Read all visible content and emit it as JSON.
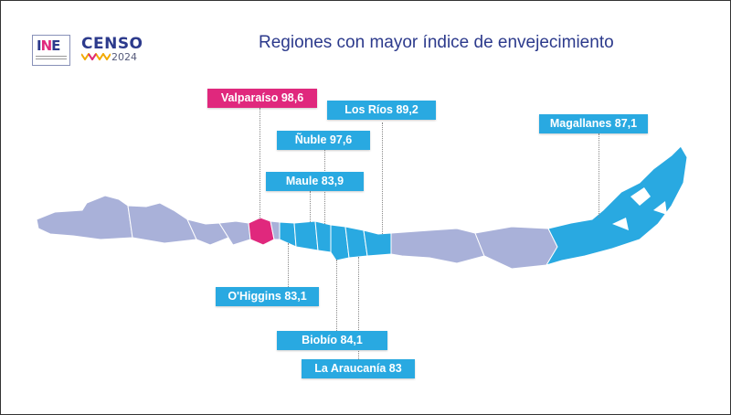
{
  "header": {
    "logo_ine": "INE — Instituto Nacional de Estadísticas · Chile",
    "logo_censo": "CENSO",
    "logo_censo_year": "2024",
    "title": "Regiones con mayor índice de envejecimiento"
  },
  "colors": {
    "highlight": "#e0287d",
    "top_regions": "#29a9e1",
    "other_regions": "#a9b1d9",
    "title": "#2c3a8c"
  },
  "regions": [
    {
      "name": "Valparaíso",
      "value": "98,6",
      "label": "Valparaíso 98,6",
      "highlight": true
    },
    {
      "name": "Ñuble",
      "value": "97,6",
      "label": "Ñuble 97,6"
    },
    {
      "name": "Los Ríos",
      "value": "89,2",
      "label": "Los Ríos 89,2"
    },
    {
      "name": "Magallanes",
      "value": "87,1",
      "label": "Magallanes 87,1"
    },
    {
      "name": "Biobío",
      "value": "84,1",
      "label": "Biobío 84,1"
    },
    {
      "name": "Maule",
      "value": "83,9",
      "label": "Maule 83,9"
    },
    {
      "name": "O'Higgins",
      "value": "83,1",
      "label": "O'Higgins 83,1"
    },
    {
      "name": "La Araucanía",
      "value": "83",
      "label": "La Araucanía 83"
    }
  ]
}
